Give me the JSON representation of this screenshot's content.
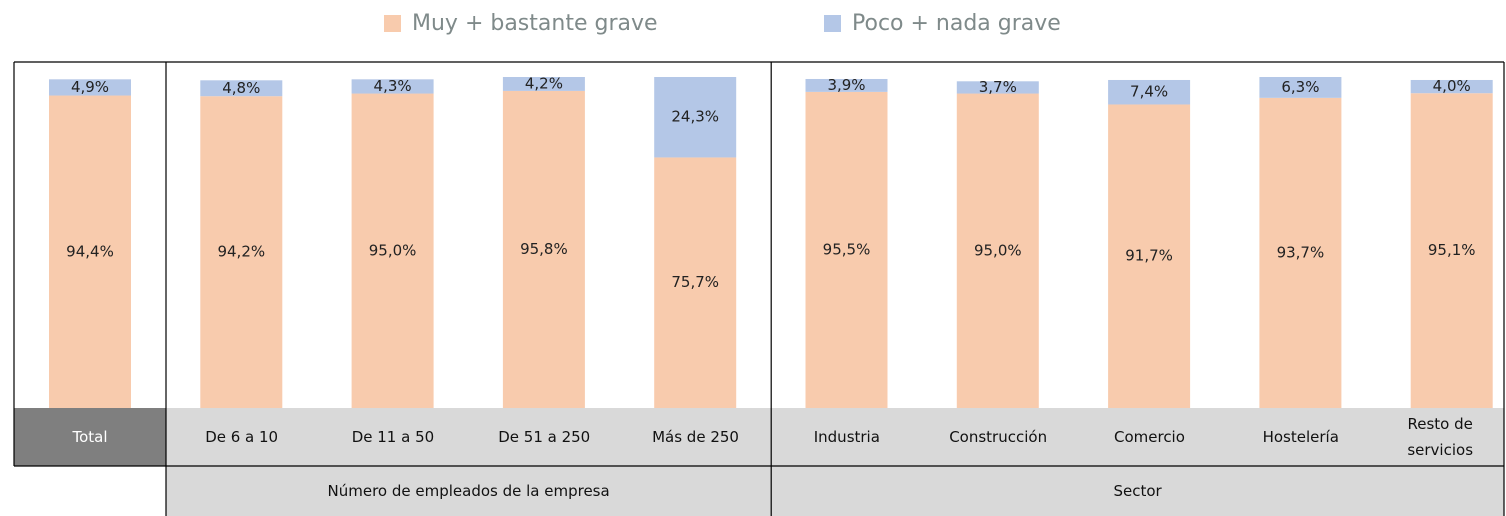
{
  "chart_data": {
    "type": "stacked_bar",
    "categories": [
      "Total",
      "De 6 a 10",
      "De 11 a 50",
      "De 51 a 250",
      "Más de 250",
      "Industria",
      "Construcción",
      "Comercio",
      "Hostelería",
      "Resto de servicios"
    ],
    "groups": [
      "Número de empleados de la empresa",
      "Sector"
    ],
    "series": [
      {
        "name": "Muy + bastante grave",
        "color": "#f8cbad",
        "values": [
          94.4,
          94.2,
          95.0,
          95.8,
          75.7,
          95.5,
          95.0,
          91.7,
          93.7,
          95.1
        ],
        "value_labels": [
          "94,4%",
          "94,2%",
          "95,0%",
          "95,8%",
          "75,7%",
          "95,5%",
          "95,0%",
          "91,7%",
          "93,7%",
          "95,1%"
        ]
      },
      {
        "name": "Poco + nada grave",
        "color": "#b4c7e7",
        "values": [
          4.9,
          4.8,
          4.3,
          4.2,
          24.3,
          3.9,
          3.7,
          7.4,
          6.3,
          4.0
        ],
        "value_labels": [
          "4,9%",
          "4,8%",
          "4,3%",
          "4,2%",
          "24,3%",
          "3,9%",
          "3,7%",
          "7,4%",
          "6,3%",
          "4,0%"
        ]
      }
    ],
    "legend": "top"
  }
}
